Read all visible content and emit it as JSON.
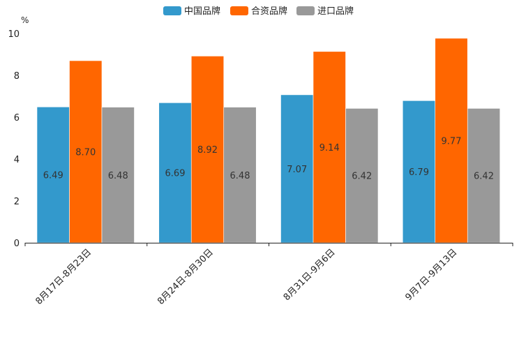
{
  "chart_data": {
    "type": "bar",
    "title": "",
    "xlabel": "",
    "ylabel": "%",
    "ylim": [
      0,
      10
    ],
    "yticks": [
      0,
      2,
      4,
      6,
      8,
      10
    ],
    "grid": false,
    "legend_position": "top-center",
    "categories": [
      "8月17日-8月23日",
      "8月24日-8月30日",
      "8月31日-9月6日",
      "9月7日-9月13日"
    ],
    "series": [
      {
        "name": "中国品牌",
        "color": "#3399cc",
        "values": [
          6.49,
          6.69,
          7.07,
          6.79
        ],
        "labels": [
          "6.49",
          "6.69",
          "7.07",
          "6.79"
        ]
      },
      {
        "name": "合资品牌",
        "color": "#ff6600",
        "values": [
          8.7,
          8.92,
          9.14,
          9.77
        ],
        "labels": [
          "8.70",
          "8.92",
          "9.14",
          "9.77"
        ]
      },
      {
        "name": "进口品牌",
        "color": "#999999",
        "values": [
          6.48,
          6.48,
          6.42,
          6.42
        ],
        "labels": [
          "6.48",
          "6.48",
          "6.42",
          "6.42"
        ]
      }
    ]
  }
}
